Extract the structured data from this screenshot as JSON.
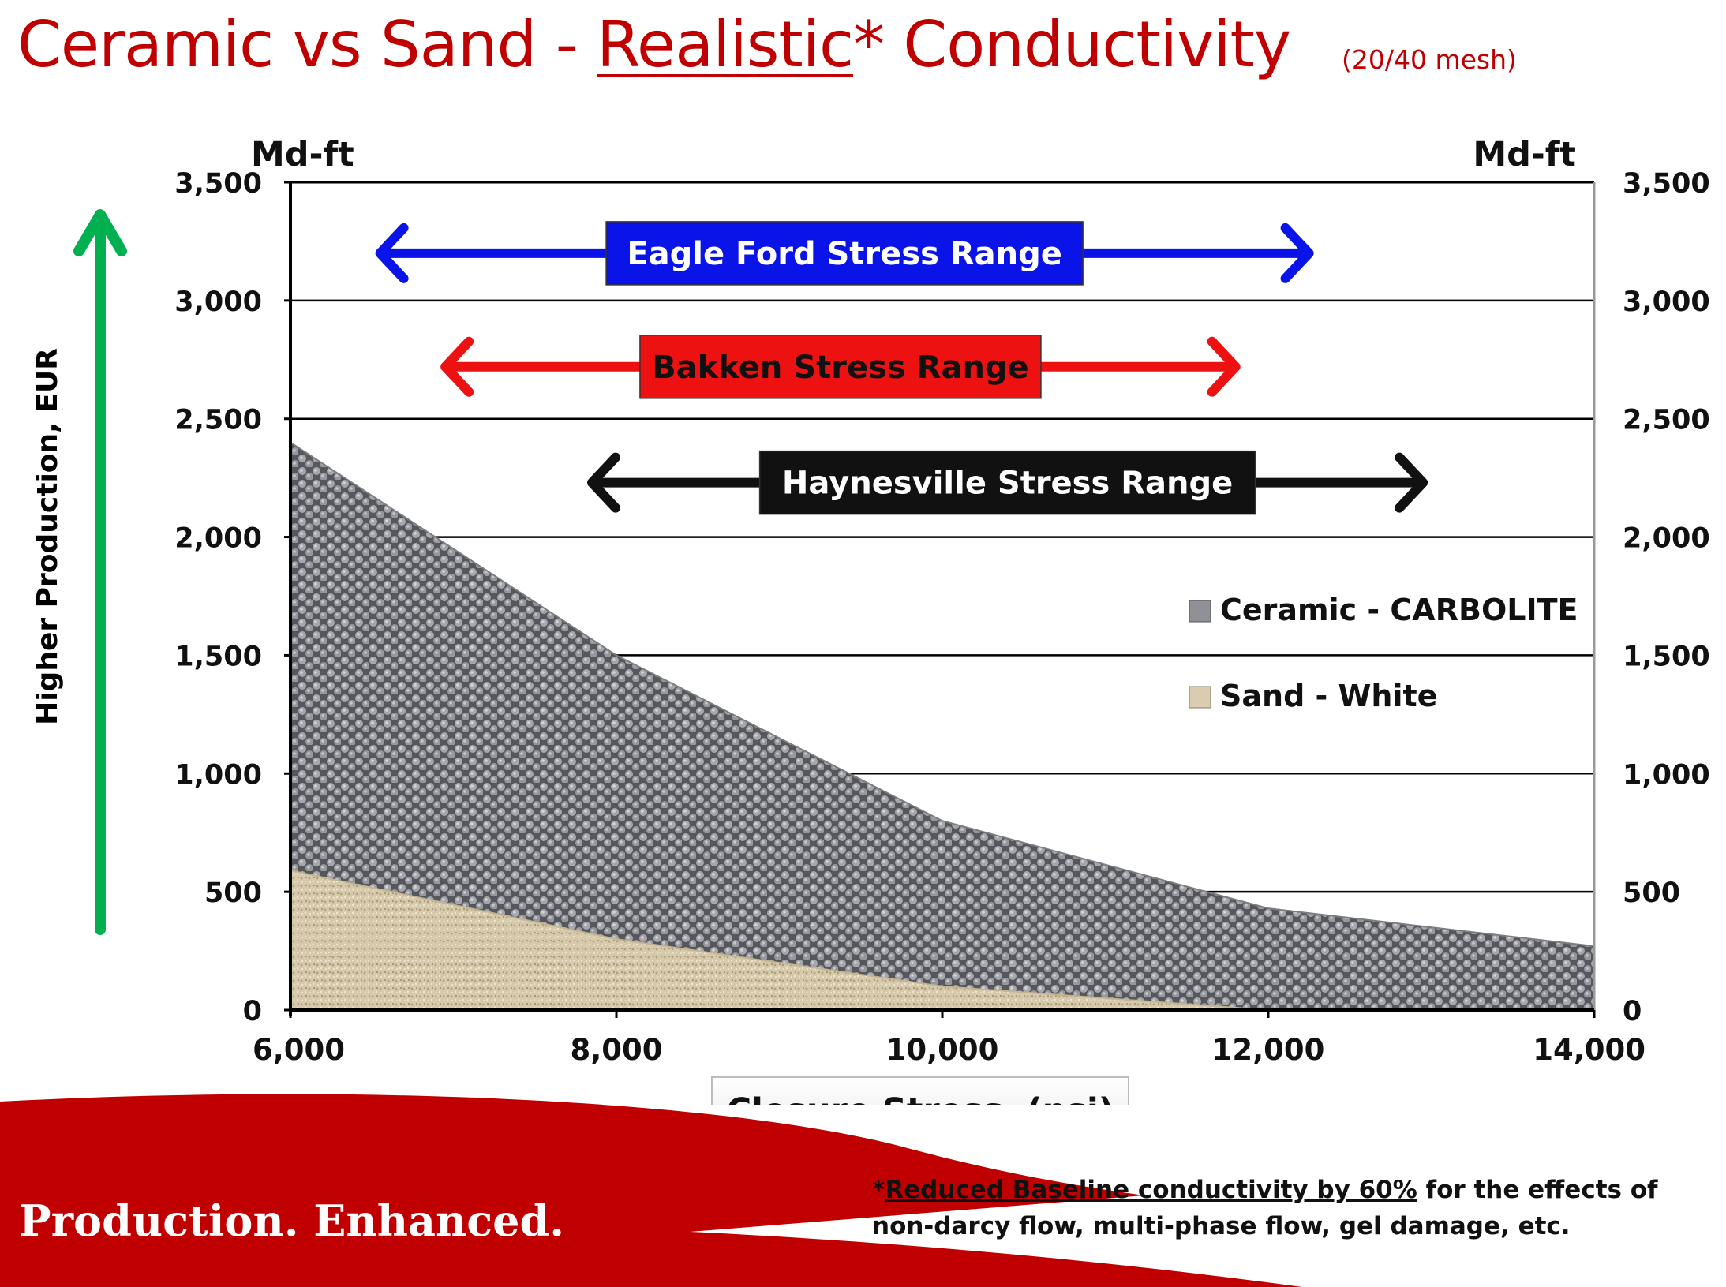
{
  "title": {
    "part1": "Ceramic vs Sand - ",
    "underlined": "Realistic",
    "part2": "* Conductivity",
    "subtitle": "(20/40 mesh)"
  },
  "side_label": "Higher Production, EUR",
  "footer": {
    "tagline": "Production. Enhanced.",
    "footnote_star": "*",
    "footnote_underlined": "Reduced Baseline conductivity by 60%",
    "footnote_rest": " for the effects of non-darcy flow, multi-phase flow, gel damage, etc."
  },
  "colors": {
    "brand_red": "#c00000",
    "eagle_ford": "#0a14e8",
    "bakken": "#ee1111",
    "haynesville": "#111111",
    "eur_arrow": "#00b050",
    "ceramic": "#8f9196",
    "sand": "#d9ccb0"
  },
  "chart_data": {
    "type": "area",
    "xlabel": "Closure Stress  (psi)",
    "ylabel_left": "Md-ft",
    "ylabel_right": "Md-ft",
    "xlim": [
      6000,
      14000
    ],
    "ylim": [
      0,
      3500
    ],
    "xticks": [
      6000,
      8000,
      10000,
      12000,
      14000
    ],
    "yticks": [
      0,
      500,
      1000,
      1500,
      2000,
      2500,
      3000,
      3500
    ],
    "grid": true,
    "legend_position": "right",
    "series": [
      {
        "name": "Ceramic - CARBOLITE",
        "x": [
          6000,
          8000,
          10000,
          12000,
          14000
        ],
        "y": [
          2400,
          1500,
          800,
          430,
          270
        ]
      },
      {
        "name": "Sand - White",
        "x": [
          6000,
          8000,
          10000,
          12000,
          14000
        ],
        "y": [
          590,
          300,
          100,
          0,
          0
        ]
      }
    ],
    "ranges": [
      {
        "name": "Eagle Ford Stress Range",
        "x_start": 6550,
        "x_end": 12250,
        "y": 3200
      },
      {
        "name": "Bakken Stress Range",
        "x_start": 6950,
        "x_end": 11800,
        "y": 2720
      },
      {
        "name": "Haynesville Stress Range",
        "x_start": 7850,
        "x_end": 12950,
        "y": 2230
      }
    ]
  }
}
